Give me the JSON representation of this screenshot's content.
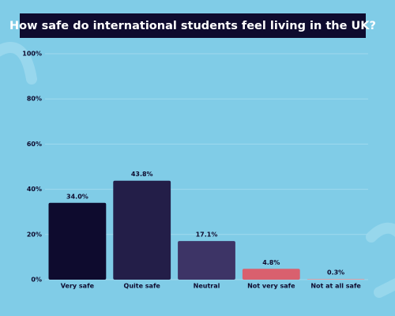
{
  "chart_data": {
    "type": "bar",
    "title": "How safe do international students feel living in the UK?",
    "categories": [
      "Very safe",
      "Quite safe",
      "Neutral",
      "Not very safe",
      "Not at all safe"
    ],
    "values": [
      34.0,
      43.8,
      17.1,
      4.8,
      0.3
    ],
    "value_labels": [
      "34.0%",
      "43.8%",
      "17.1%",
      "4.8%",
      "0.3%"
    ],
    "colors": [
      "#0e0b2e",
      "#231e48",
      "#3d3466",
      "#d9606e",
      "#e39a9e"
    ],
    "ylim": [
      0,
      100
    ],
    "yticks": [
      {
        "value": 0,
        "label": "0%"
      },
      {
        "value": 20,
        "label": "20%"
      },
      {
        "value": 40,
        "label": "40%"
      },
      {
        "value": 60,
        "label": "60%"
      },
      {
        "value": 80,
        "label": "80%"
      },
      {
        "value": 100,
        "label": "100%"
      }
    ],
    "grid": true
  }
}
